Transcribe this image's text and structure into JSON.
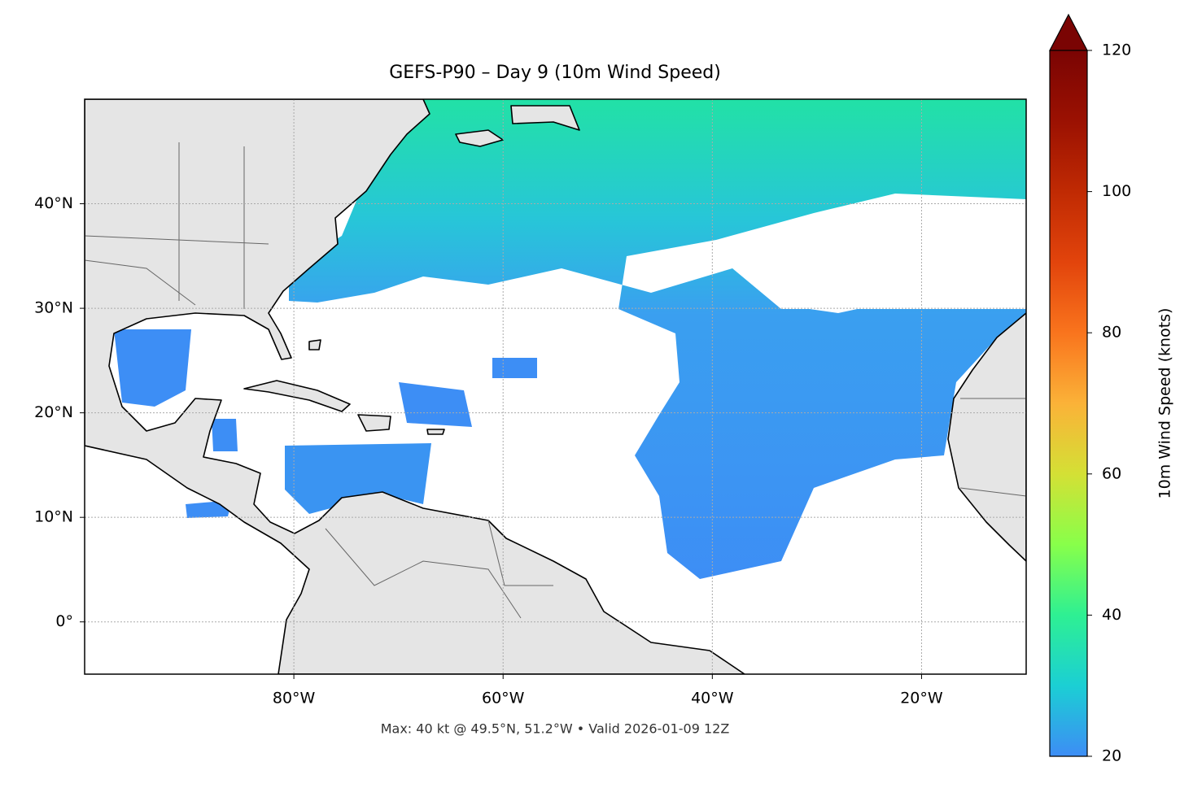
{
  "chart_data": {
    "type": "map",
    "title": "GEFS-P90 – Day 9 (10m Wind Speed)",
    "subtitle": "Max: 40 kt @ 49.5°N, 51.2°W • Valid 2026-01-09 12Z",
    "xlim": [
      -100,
      -10
    ],
    "ylim": [
      -5,
      50
    ],
    "xticks": [
      {
        "value": -80,
        "label": "80°W"
      },
      {
        "value": -60,
        "label": "60°W"
      },
      {
        "value": -40,
        "label": "40°W"
      },
      {
        "value": -20,
        "label": "20°W"
      }
    ],
    "yticks": [
      {
        "value": 0,
        "label": "0°"
      },
      {
        "value": 10,
        "label": "10°N"
      },
      {
        "value": 20,
        "label": "20°N"
      },
      {
        "value": 30,
        "label": "30°N"
      },
      {
        "value": 40,
        "label": "40°N"
      }
    ],
    "grid": true,
    "colorbar": {
      "label": "10m Wind Speed (knots)",
      "lim": [
        20,
        120
      ],
      "ticks": [
        20,
        40,
        60,
        80,
        100,
        120
      ],
      "extend": "max"
    }
  }
}
